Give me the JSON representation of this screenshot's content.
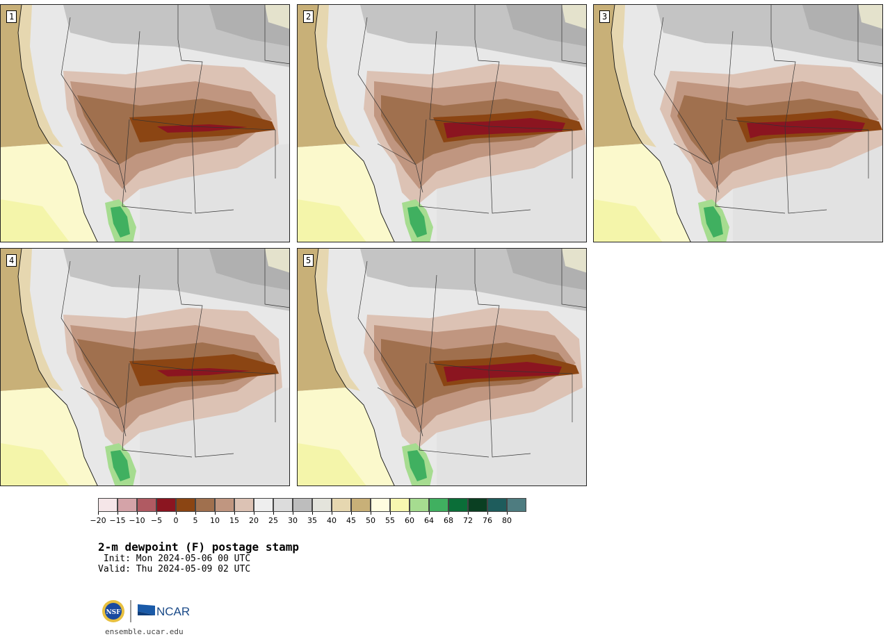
{
  "panels": [
    {
      "label": "1",
      "variant": 0
    },
    {
      "label": "2",
      "variant": 1
    },
    {
      "label": "3",
      "variant": 2
    },
    {
      "label": "4",
      "variant": 3
    },
    {
      "label": "5",
      "variant": 4
    }
  ],
  "colorbar": {
    "levels": [
      "−20",
      "−15",
      "−10",
      "−5",
      "0",
      "5",
      "10",
      "15",
      "20",
      "25",
      "30",
      "35",
      "40",
      "45",
      "50",
      "55",
      "60",
      "64",
      "68",
      "72",
      "76",
      "80"
    ],
    "colors": [
      "#f5e6e8",
      "#d4a3a8",
      "#b05a62",
      "#8b1520",
      "#8b4513",
      "#a0704e",
      "#c09680",
      "#dcc2b4",
      "#eeeeee",
      "#dcdcdc",
      "#bdbdbd",
      "#e4e4dc",
      "#e6d7b0",
      "#c8b078",
      "#fffde0",
      "#f7f7b0",
      "#a6dc90",
      "#40b060",
      "#0a6e38",
      "#0a3f22",
      "#1e5c5c",
      "#4e7c80"
    ]
  },
  "title": "2-m dewpoint (F) postage stamp",
  "init_line": " Init: Mon 2024-05-06 00 UTC",
  "valid_line": "Valid: Thu 2024-05-09 02 UTC",
  "logos": {
    "nsf": "NSF",
    "ncar": "NCAR"
  },
  "site": "ensemble.ucar.edu"
}
